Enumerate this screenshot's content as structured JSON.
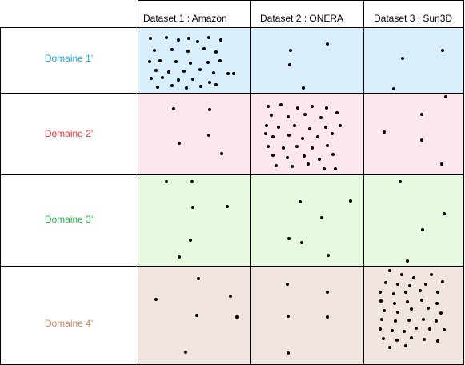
{
  "columns": [
    {
      "label": "Dataset 1 : Amazon"
    },
    {
      "label": "Dataset 2 : ONERA"
    },
    {
      "label": "Dataset 3 : Sun3D"
    }
  ],
  "rows": [
    {
      "label": "Domaine 1'",
      "label_color": "#1fa3d8",
      "bg": "#d9effc"
    },
    {
      "label": "Domaine 2'",
      "label_color": "#e8333a",
      "bg": "#fde7ee"
    },
    {
      "label": "Domaine 3'",
      "label_color": "#27b24a",
      "bg": "#e7fadf"
    },
    {
      "label": "Domaine 4'",
      "label_color": "#c28460",
      "bg": "#f1e5e0"
    }
  ],
  "cell_dot_density": [
    [
      "dense",
      "sparse",
      "sparse"
    ],
    [
      "sparse",
      "dense",
      "sparse"
    ],
    [
      "sparse",
      "sparse",
      "sparse"
    ],
    [
      "sparse",
      "sparse",
      "dense"
    ]
  ]
}
